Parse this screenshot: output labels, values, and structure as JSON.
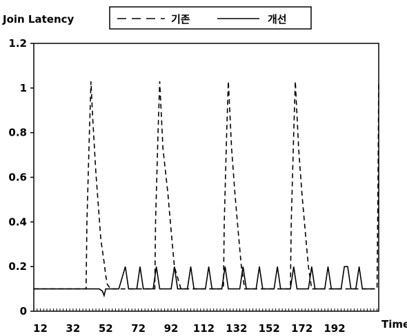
{
  "chart_data": {
    "type": "line",
    "ylabel": "Join Latency",
    "xlabel": "Time",
    "ylim": [
      0,
      1.2
    ],
    "xlim": [
      8,
      219
    ],
    "yticks": [
      "0",
      "0.2",
      "0.4",
      "0.6",
      "0.8",
      "1",
      "1.2"
    ],
    "ytick_values": [
      0,
      0.2,
      0.4,
      0.6,
      0.8,
      1.0,
      1.2
    ],
    "xticks": [
      "12",
      "32",
      "52",
      "72",
      "92",
      "112",
      "132",
      "152",
      "172",
      "192"
    ],
    "xtick_values": [
      12,
      32,
      52,
      72,
      92,
      112,
      132,
      152,
      172,
      192
    ],
    "grid": false,
    "legend": {
      "placement": "top"
    },
    "series": [
      {
        "name": "기존",
        "style": "dashed",
        "x": [
          8,
          40,
          40.5,
          42,
          43,
          44,
          46,
          48,
          49,
          51,
          52,
          53,
          55,
          56,
          60,
          82,
          82.5,
          84,
          85,
          87,
          90,
          92,
          94,
          98,
          124,
          124.5,
          126,
          127,
          129,
          131,
          133,
          135,
          137,
          141,
          165,
          165.5,
          167,
          168,
          170,
          172,
          174,
          176,
          178,
          182,
          218,
          218.5,
          219
        ],
        "y": [
          0.1,
          0.1,
          0.4,
          0.8,
          1.03,
          0.87,
          0.62,
          0.42,
          0.32,
          0.22,
          0.16,
          0.12,
          0.1,
          0.1,
          0.1,
          0.1,
          0.4,
          0.8,
          1.03,
          0.73,
          0.53,
          0.36,
          0.2,
          0.1,
          0.1,
          0.4,
          0.8,
          1.03,
          0.73,
          0.53,
          0.36,
          0.2,
          0.1,
          0.1,
          0.1,
          0.4,
          0.8,
          1.03,
          0.73,
          0.53,
          0.36,
          0.2,
          0.1,
          0.1,
          0.1,
          0.5,
          1.03
        ]
      },
      {
        "name": "개선",
        "style": "solid",
        "x": [
          8,
          48,
          50,
          51,
          52,
          54,
          60,
          62,
          64,
          66,
          71,
          73,
          75,
          81,
          83,
          85,
          87,
          92,
          94,
          96,
          102,
          104,
          106,
          113,
          115,
          117,
          123,
          125,
          127,
          129,
          134,
          136,
          138,
          144,
          146,
          148,
          155,
          157,
          159,
          165,
          167,
          169,
          171,
          176,
          178,
          180,
          186,
          188,
          190,
          192,
          196,
          198,
          200,
          202,
          205,
          207,
          209,
          213,
          216
        ],
        "y": [
          0.1,
          0.1,
          0.09,
          0.07,
          0.1,
          0.1,
          0.1,
          0.15,
          0.2,
          0.1,
          0.1,
          0.2,
          0.1,
          0.1,
          0.2,
          0.1,
          0.1,
          0.1,
          0.2,
          0.1,
          0.1,
          0.2,
          0.1,
          0.1,
          0.2,
          0.1,
          0.1,
          0.2,
          0.1,
          0.1,
          0.1,
          0.2,
          0.1,
          0.1,
          0.2,
          0.1,
          0.1,
          0.2,
          0.1,
          0.1,
          0.2,
          0.1,
          0.1,
          0.1,
          0.2,
          0.1,
          0.1,
          0.2,
          0.1,
          0.1,
          0.1,
          0.2,
          0.2,
          0.1,
          0.1,
          0.2,
          0.1,
          0.1,
          0.1
        ]
      }
    ]
  }
}
